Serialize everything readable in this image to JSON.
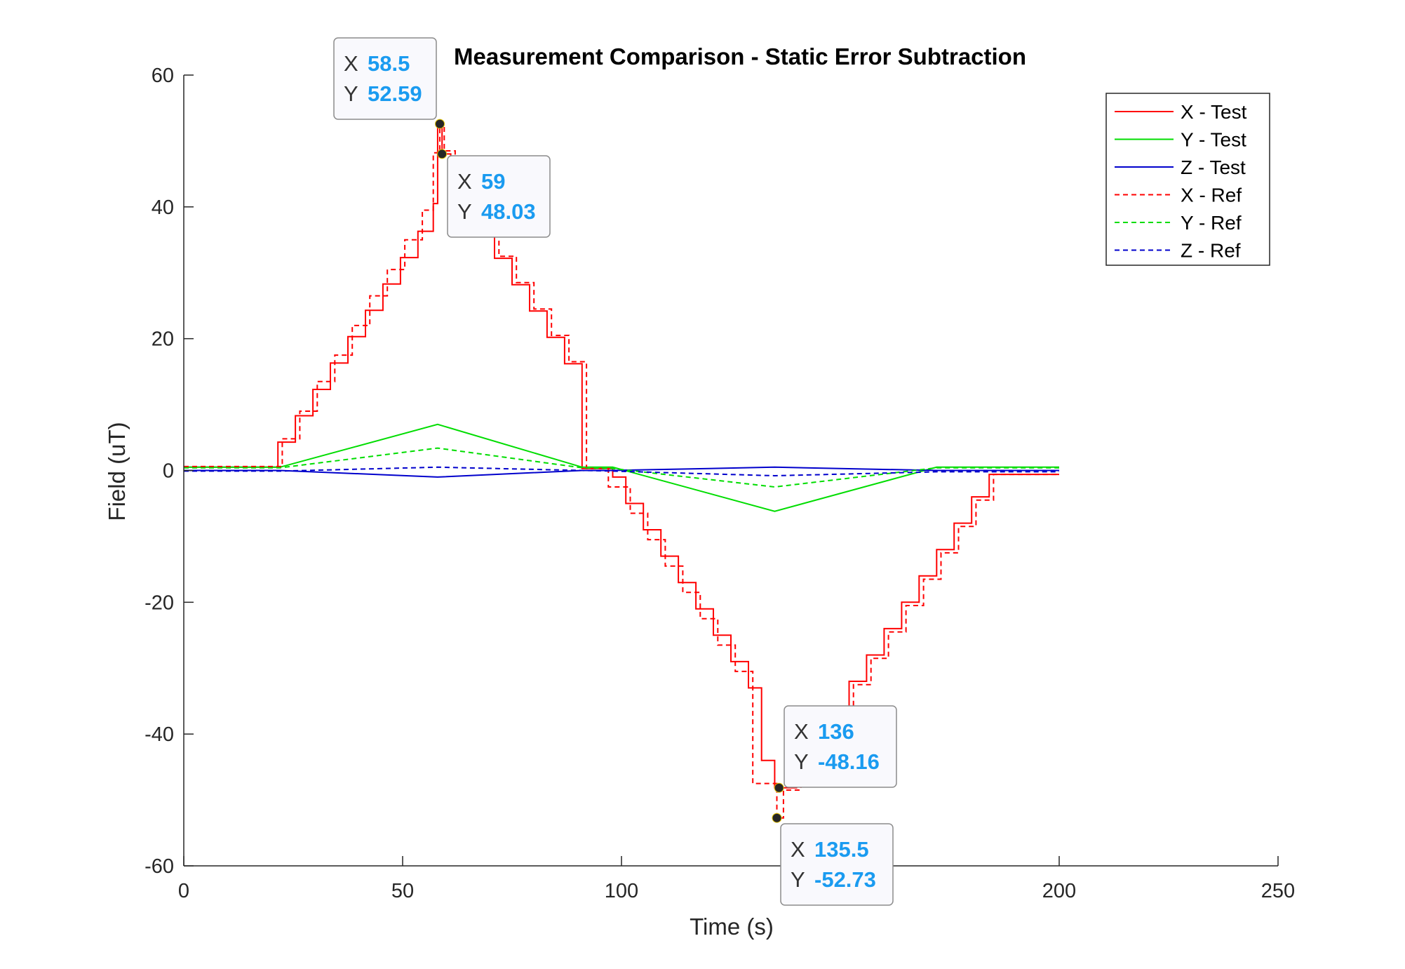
{
  "chart_data": {
    "type": "line",
    "title": "Measurement Comparison - Static Error Subtraction",
    "xlabel": "Time (s)",
    "ylabel": "Field (uT)",
    "xlim": [
      0,
      250
    ],
    "ylim": [
      -60,
      60
    ],
    "xticks": [
      "0",
      "50",
      "100",
      "150",
      "200",
      "250"
    ],
    "yticks": [
      "60",
      "40",
      "20",
      "0",
      "-20",
      "-40",
      "-60"
    ],
    "grid": false,
    "legend_position": "top-right",
    "series": [
      {
        "name": "X - Test",
        "color": "#ff0000",
        "style": "solid"
      },
      {
        "name": "Y - Test",
        "color": "#00dd00",
        "style": "solid"
      },
      {
        "name": "Z - Test",
        "color": "#0000cc",
        "style": "solid"
      },
      {
        "name": "X - Ref",
        "color": "#ff0000",
        "style": "dashed"
      },
      {
        "name": "Y - Ref",
        "color": "#00dd00",
        "style": "dashed"
      },
      {
        "name": "Z - Ref",
        "color": "#0000cc",
        "style": "dashed"
      }
    ],
    "series_data": {
      "x_test": [
        [
          0,
          0.5
        ],
        [
          21.5,
          0.5
        ],
        [
          21.5,
          4.3
        ],
        [
          25.5,
          4.3
        ],
        [
          25.5,
          8.3
        ],
        [
          29.5,
          8.3
        ],
        [
          29.5,
          12.3
        ],
        [
          33.5,
          12.3
        ],
        [
          33.5,
          16.3
        ],
        [
          37.5,
          16.3
        ],
        [
          37.5,
          20.3
        ],
        [
          41.5,
          20.3
        ],
        [
          41.5,
          24.3
        ],
        [
          45.5,
          24.3
        ],
        [
          45.5,
          28.3
        ],
        [
          49.5,
          28.3
        ],
        [
          49.5,
          32.3
        ],
        [
          53.5,
          32.3
        ],
        [
          53.5,
          36.3
        ],
        [
          57,
          36.3
        ],
        [
          57,
          40.5
        ],
        [
          58,
          40.5
        ],
        [
          58,
          52.5
        ],
        [
          59,
          52.5
        ],
        [
          59,
          48.03
        ],
        [
          61,
          48.03
        ],
        [
          61,
          44.2
        ],
        [
          63,
          44.2
        ],
        [
          63,
          40.2
        ],
        [
          67,
          40.2
        ],
        [
          67,
          36.2
        ],
        [
          71,
          36.2
        ],
        [
          71,
          32.2
        ],
        [
          75,
          32.2
        ],
        [
          75,
          28.2
        ],
        [
          79,
          28.2
        ],
        [
          79,
          24.2
        ],
        [
          83,
          24.2
        ],
        [
          83,
          20.2
        ],
        [
          87,
          20.2
        ],
        [
          87,
          16.2
        ],
        [
          91,
          16.2
        ],
        [
          91,
          0.3
        ],
        [
          98,
          0.3
        ],
        [
          98,
          -1.0
        ],
        [
          101,
          -1.0
        ],
        [
          101,
          -5.0
        ],
        [
          105,
          -5.0
        ],
        [
          105,
          -9.0
        ],
        [
          109,
          -9.0
        ],
        [
          109,
          -13.0
        ],
        [
          113,
          -13.0
        ],
        [
          113,
          -17.0
        ],
        [
          117,
          -17.0
        ],
        [
          117,
          -21.0
        ],
        [
          121,
          -21.0
        ],
        [
          121,
          -25.0
        ],
        [
          125,
          -25.0
        ],
        [
          125,
          -29.0
        ],
        [
          129,
          -29.0
        ],
        [
          129,
          -33.0
        ],
        [
          132,
          -33.0
        ],
        [
          132,
          -44.0
        ],
        [
          135,
          -44.0
        ],
        [
          135,
          -48.16
        ],
        [
          140,
          -48.16
        ],
        [
          140,
          -44.0
        ],
        [
          144,
          -44.0
        ],
        [
          144,
          -40.0
        ],
        [
          148,
          -40.0
        ],
        [
          148,
          -36.0
        ],
        [
          152,
          -36.0
        ],
        [
          152,
          -32.0
        ],
        [
          156,
          -32.0
        ],
        [
          156,
          -28.0
        ],
        [
          160,
          -28.0
        ],
        [
          160,
          -24.0
        ],
        [
          164,
          -24.0
        ],
        [
          164,
          -20.0
        ],
        [
          168,
          -20.0
        ],
        [
          168,
          -16.0
        ],
        [
          172,
          -16.0
        ],
        [
          172,
          -12.0
        ],
        [
          176,
          -12.0
        ],
        [
          176,
          -8.0
        ],
        [
          180,
          -8.0
        ],
        [
          180,
          -4.0
        ],
        [
          184,
          -4.0
        ],
        [
          184,
          -0.6
        ],
        [
          200,
          -0.6
        ]
      ],
      "x_ref": [
        [
          0,
          0.6
        ],
        [
          22.5,
          0.6
        ],
        [
          22.5,
          4.8
        ],
        [
          26.5,
          4.8
        ],
        [
          26.5,
          9.0
        ],
        [
          30.5,
          9.0
        ],
        [
          30.5,
          13.5
        ],
        [
          34.5,
          13.5
        ],
        [
          34.5,
          17.5
        ],
        [
          38.5,
          17.5
        ],
        [
          38.5,
          22.0
        ],
        [
          42.5,
          22.0
        ],
        [
          42.5,
          26.5
        ],
        [
          46.5,
          26.5
        ],
        [
          46.5,
          30.5
        ],
        [
          50.5,
          30.5
        ],
        [
          50.5,
          35.0
        ],
        [
          54.5,
          35.0
        ],
        [
          54.5,
          39.5
        ],
        [
          57,
          39.5
        ],
        [
          57,
          48.2
        ],
        [
          58.5,
          48.2
        ],
        [
          58.5,
          52.59
        ],
        [
          59.5,
          52.59
        ],
        [
          59.5,
          48.5
        ],
        [
          62,
          48.5
        ],
        [
          62,
          44.5
        ],
        [
          64,
          44.5
        ],
        [
          64,
          40.5
        ],
        [
          68,
          40.5
        ],
        [
          68,
          36.5
        ],
        [
          72,
          36.5
        ],
        [
          72,
          32.5
        ],
        [
          76,
          32.5
        ],
        [
          76,
          28.5
        ],
        [
          80,
          28.5
        ],
        [
          80,
          24.5
        ],
        [
          84,
          24.5
        ],
        [
          84,
          20.5
        ],
        [
          88,
          20.5
        ],
        [
          88,
          16.5
        ],
        [
          92,
          16.5
        ],
        [
          92,
          0.3
        ],
        [
          97,
          0.3
        ],
        [
          97,
          -2.5
        ],
        [
          102,
          -2.5
        ],
        [
          102,
          -6.5
        ],
        [
          106,
          -6.5
        ],
        [
          106,
          -10.5
        ],
        [
          110,
          -10.5
        ],
        [
          110,
          -14.5
        ],
        [
          114,
          -14.5
        ],
        [
          114,
          -18.5
        ],
        [
          118,
          -18.5
        ],
        [
          118,
          -22.5
        ],
        [
          122,
          -22.5
        ],
        [
          122,
          -26.5
        ],
        [
          126,
          -26.5
        ],
        [
          126,
          -30.5
        ],
        [
          130,
          -30.5
        ],
        [
          130,
          -47.5
        ],
        [
          135.5,
          -47.5
        ],
        [
          135.5,
          -52.73
        ],
        [
          137,
          -52.73
        ],
        [
          137,
          -48.5
        ],
        [
          141,
          -48.5
        ],
        [
          141,
          -44.5
        ],
        [
          145,
          -44.5
        ],
        [
          145,
          -40.5
        ],
        [
          149,
          -40.5
        ],
        [
          149,
          -36.5
        ],
        [
          153,
          -36.5
        ],
        [
          153,
          -32.5
        ],
        [
          157,
          -32.5
        ],
        [
          157,
          -28.5
        ],
        [
          161,
          -28.5
        ],
        [
          161,
          -24.5
        ],
        [
          165,
          -24.5
        ],
        [
          165,
          -20.5
        ],
        [
          169,
          -20.5
        ],
        [
          169,
          -16.5
        ],
        [
          173,
          -16.5
        ],
        [
          173,
          -12.5
        ],
        [
          177,
          -12.5
        ],
        [
          177,
          -8.5
        ],
        [
          181,
          -8.5
        ],
        [
          181,
          -4.5
        ],
        [
          185,
          -4.5
        ],
        [
          185,
          -0.6
        ],
        [
          200,
          -0.6
        ]
      ],
      "y_test": [
        [
          0,
          0.5
        ],
        [
          22,
          0.5
        ],
        [
          58,
          7.0
        ],
        [
          91,
          0.5
        ],
        [
          98,
          0.5
        ],
        [
          135,
          -6.2
        ],
        [
          172,
          0.5
        ],
        [
          200,
          0.5
        ]
      ],
      "y_ref": [
        [
          0,
          0.4
        ],
        [
          22,
          0.4
        ],
        [
          58,
          3.4
        ],
        [
          91,
          0.4
        ],
        [
          98,
          0.3
        ],
        [
          135,
          -2.5
        ],
        [
          172,
          0.4
        ],
        [
          200,
          0.4
        ]
      ],
      "z_test": [
        [
          0,
          0.0
        ],
        [
          22,
          0.0
        ],
        [
          58,
          -1.0
        ],
        [
          91,
          0.0
        ],
        [
          98,
          0.0
        ],
        [
          135,
          0.5
        ],
        [
          172,
          0.0
        ],
        [
          200,
          0.0
        ]
      ],
      "z_ref": [
        [
          0,
          -0.1
        ],
        [
          22,
          -0.1
        ],
        [
          58,
          0.5
        ],
        [
          91,
          0.0
        ],
        [
          98,
          -0.1
        ],
        [
          135,
          -0.8
        ],
        [
          172,
          -0.2
        ],
        [
          200,
          -0.2
        ]
      ]
    },
    "datatips": [
      {
        "x": 58.5,
        "y": 52.59,
        "x_label": "X",
        "x_text": "58.5",
        "y_label": "Y",
        "y_text": "52.59"
      },
      {
        "x": 59,
        "y": 48.03,
        "x_label": "X",
        "x_text": "59",
        "y_label": "Y",
        "y_text": "48.03"
      },
      {
        "x": 136,
        "y": -48.16,
        "x_label": "X",
        "x_text": "136",
        "y_label": "Y",
        "y_text": "-48.16"
      },
      {
        "x": 135.5,
        "y": -52.73,
        "x_label": "X",
        "x_text": "135.5",
        "y_label": "Y",
        "y_text": "-52.73"
      }
    ]
  }
}
